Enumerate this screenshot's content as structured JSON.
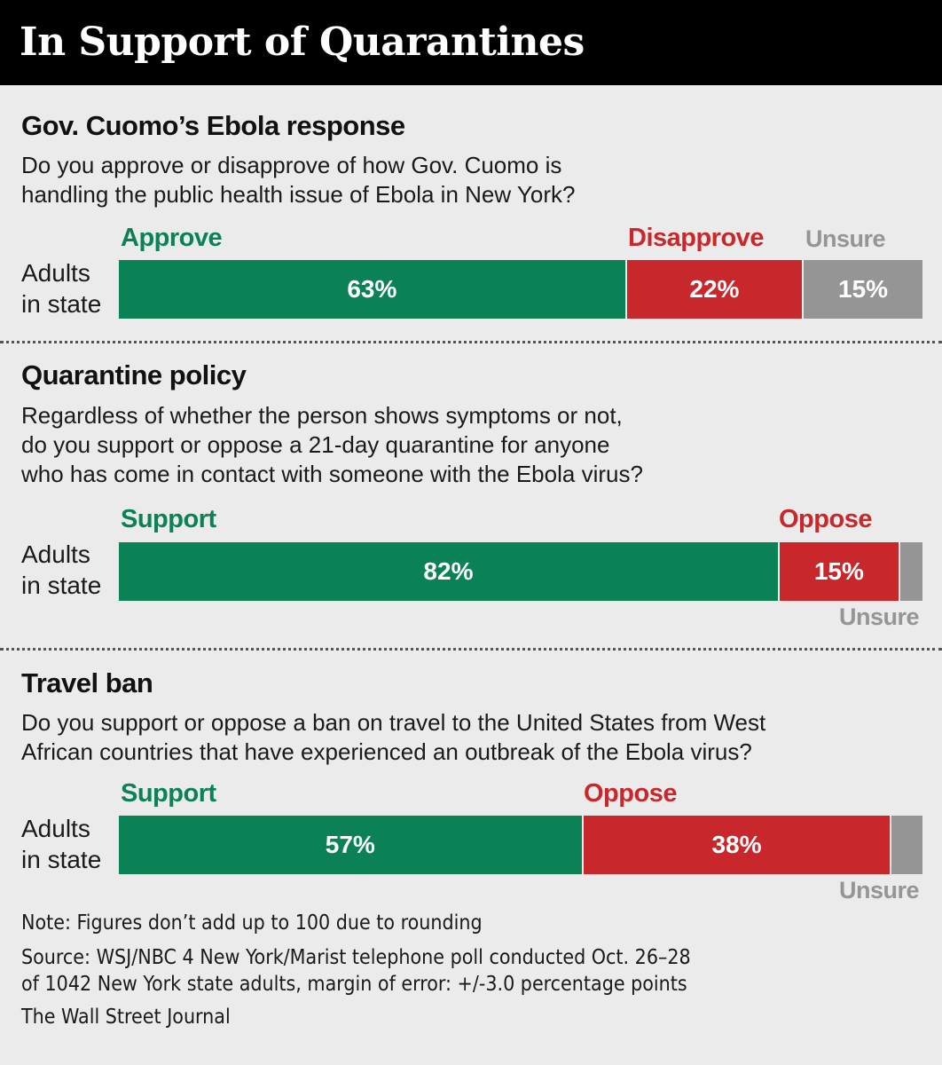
{
  "title": "In Support of Quarantines",
  "colors": {
    "green": "#0b8256",
    "red": "#c8282b",
    "gray": "#959595"
  },
  "chart_data": [
    {
      "type": "bar",
      "title": "Gov. Cuomo’s Ebola response",
      "question": "Do you approve or disapprove of how Gov. Cuomo is\nhandling the public health issue of Ebola in New York?",
      "row_label": "Adults\nin state",
      "categories": [
        "Approve",
        "Disapprove",
        "Unsure"
      ],
      "values": [
        63,
        22,
        15
      ],
      "value_labels": [
        "63%",
        "22%",
        "15%"
      ]
    },
    {
      "type": "bar",
      "title": "Quarantine policy",
      "question": "Regardless of whether the person shows symptoms or not,\ndo you support or oppose a 21-day quarantine for anyone\nwho has come in contact with someone with the Ebola virus?",
      "row_label": "Adults\nin state",
      "categories": [
        "Support",
        "Oppose",
        "Unsure"
      ],
      "values": [
        82,
        15,
        3
      ],
      "value_labels": [
        "82%",
        "15%",
        ""
      ]
    },
    {
      "type": "bar",
      "title": "Travel ban",
      "question": "Do you support or oppose a ban on travel to the United States from West\nAfrican countries that have experienced an outbreak of the Ebola virus?",
      "row_label": "Adults\nin state",
      "categories": [
        "Support",
        "Oppose",
        "Unsure"
      ],
      "values": [
        57,
        38,
        4
      ],
      "value_labels": [
        "57%",
        "38%",
        ""
      ]
    }
  ],
  "footer": {
    "note": "Note: Figures don’t add up to 100 due to rounding",
    "source": "Source: WSJ/NBC 4 New York/Marist telephone poll conducted Oct. 26–28\nof 1042 New York state adults, margin of error: +/-3.0 percentage points",
    "credit": "The Wall Street Journal"
  }
}
